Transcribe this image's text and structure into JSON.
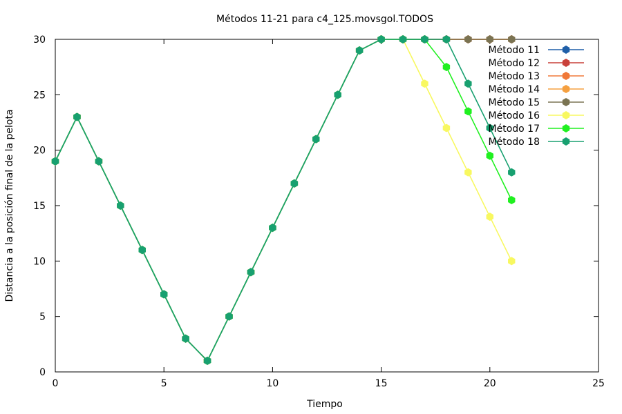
{
  "chart_data": {
    "type": "line",
    "title": "Métodos 11-21 para c4_125.movsgol.TODOS",
    "xlabel": "Tiempo",
    "ylabel": "Distancia a la posición final de la pelota",
    "xlim": [
      0,
      25
    ],
    "ylim": [
      0,
      30
    ],
    "xticks": [
      0,
      5,
      10,
      15,
      20,
      25
    ],
    "yticks": [
      0,
      5,
      10,
      15,
      20,
      25,
      30
    ],
    "grid": false,
    "legend_position": "top-right",
    "x": [
      0,
      1,
      2,
      3,
      4,
      5,
      6,
      7,
      8,
      9,
      10,
      11,
      12,
      13,
      14,
      15,
      16,
      17,
      18,
      19,
      20,
      21
    ],
    "series": [
      {
        "name": "Método 11",
        "color": "#1f5fa8",
        "values": [
          19,
          23,
          19,
          15,
          11,
          7,
          3,
          1,
          5,
          9,
          13,
          17,
          21,
          25,
          29,
          30,
          30,
          30,
          30,
          30,
          30,
          30
        ]
      },
      {
        "name": "Método 12",
        "color": "#c9413a",
        "values": [
          19,
          23,
          19,
          15,
          11,
          7,
          3,
          1,
          5,
          9,
          13,
          17,
          21,
          25,
          29,
          30,
          30,
          30,
          30,
          30,
          30,
          30
        ]
      },
      {
        "name": "Método 13",
        "color": "#f07838",
        "values": [
          19,
          23,
          19,
          15,
          11,
          7,
          3,
          1,
          5,
          9,
          13,
          17,
          21,
          25,
          29,
          30,
          30,
          30,
          30,
          30,
          30,
          30
        ]
      },
      {
        "name": "Método 14",
        "color": "#f5a040",
        "values": [
          19,
          23,
          19,
          15,
          11,
          7,
          3,
          1,
          5,
          9,
          13,
          17,
          21,
          25,
          29,
          30,
          30,
          30,
          30,
          30,
          30,
          30
        ]
      },
      {
        "name": "Método 15",
        "color": "#7a7352",
        "values": [
          19,
          23,
          19,
          15,
          11,
          7,
          3,
          1,
          5,
          9,
          13,
          17,
          21,
          25,
          29,
          30,
          30,
          30,
          30,
          30,
          30,
          30
        ]
      },
      {
        "name": "Método 16",
        "color": "#f8f860",
        "values": [
          19,
          23,
          19,
          15,
          11,
          7,
          3,
          1,
          5,
          9,
          13,
          17,
          21,
          25,
          29,
          30,
          30,
          26,
          22,
          18,
          14,
          10
        ]
      },
      {
        "name": "Método 17",
        "color": "#20f020",
        "values": [
          19,
          23,
          19,
          15,
          11,
          7,
          3,
          1,
          5,
          9,
          13,
          17,
          21,
          25,
          29,
          30,
          30,
          30,
          27.5,
          23.5,
          19.5,
          15.5
        ]
      },
      {
        "name": "Método 18",
        "color": "#18a070",
        "values": [
          19,
          23,
          19,
          15,
          11,
          7,
          3,
          1,
          5,
          9,
          13,
          17,
          21,
          25,
          29,
          30,
          30,
          30,
          30,
          26,
          22,
          18
        ]
      }
    ]
  }
}
